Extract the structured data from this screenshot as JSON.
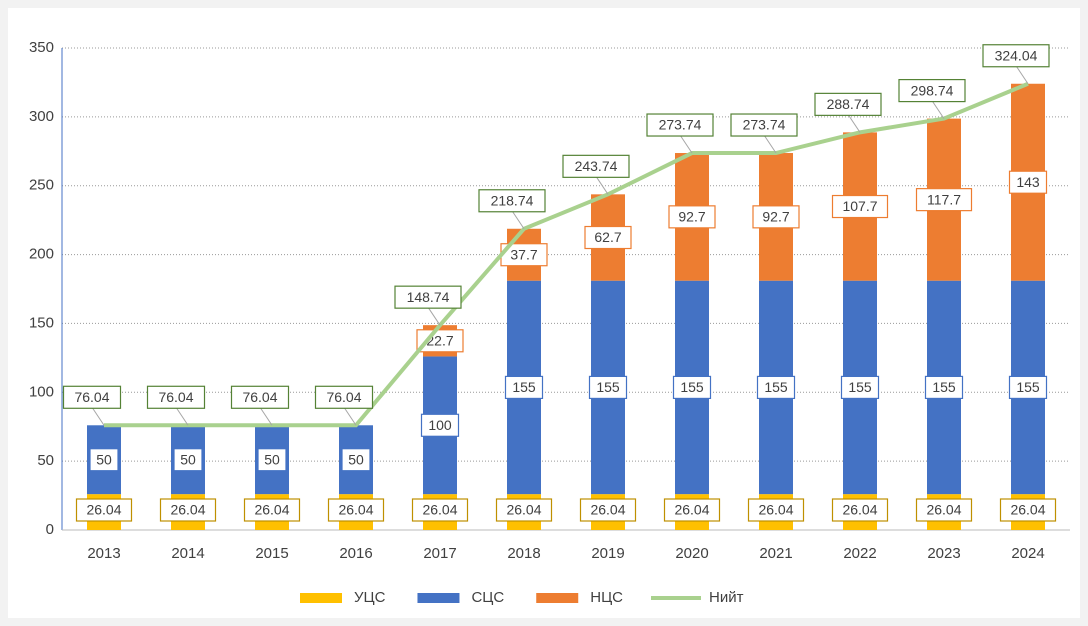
{
  "chart_data": {
    "type": "stacked-bar-line",
    "categories": [
      "2013",
      "2014",
      "2015",
      "2016",
      "2017",
      "2018",
      "2019",
      "2020",
      "2021",
      "2022",
      "2023",
      "2024"
    ],
    "series": [
      {
        "name": "УЦС",
        "color": "#FFC000",
        "values": [
          26.04,
          26.04,
          26.04,
          26.04,
          26.04,
          26.04,
          26.04,
          26.04,
          26.04,
          26.04,
          26.04,
          26.04
        ]
      },
      {
        "name": "СЦС",
        "color": "#4472C4",
        "values": [
          50,
          50,
          50,
          50,
          100,
          155,
          155,
          155,
          155,
          155,
          155,
          155
        ]
      },
      {
        "name": "НЦС",
        "color": "#ED7D31",
        "values": [
          null,
          null,
          null,
          null,
          22.7,
          37.7,
          62.7,
          92.7,
          92.7,
          107.7,
          117.7,
          143
        ]
      },
      {
        "name": "Нийт",
        "color": "#A9D18E",
        "type": "line",
        "values": [
          76.04,
          76.04,
          76.04,
          76.04,
          148.74,
          218.74,
          243.74,
          273.74,
          273.74,
          288.74,
          298.74,
          324.04
        ]
      }
    ],
    "ylim": [
      0,
      350
    ],
    "yticks": [
      0,
      50,
      100,
      150,
      200,
      250,
      300,
      350
    ],
    "grid": true,
    "legend": "bottom"
  }
}
